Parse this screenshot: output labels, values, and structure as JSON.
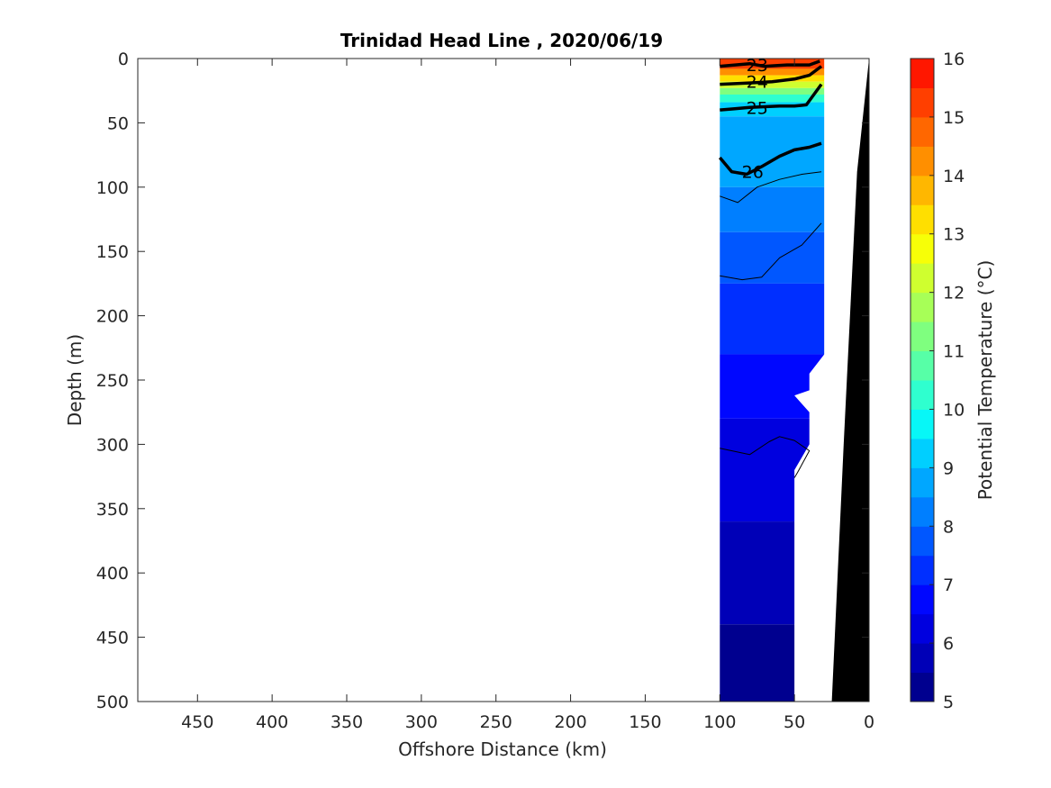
{
  "chart_data": {
    "type": "contour-section",
    "title": "Trinidad Head Line , 2020/06/19",
    "xlabel": "Offshore Distance (km)",
    "ylabel": "Depth (m)",
    "colorbar_label": "Potential Temperature (°C)",
    "x_axis": {
      "reversed": true,
      "range": [
        490,
        0
      ],
      "ticks": [
        450,
        400,
        350,
        300,
        250,
        200,
        150,
        100,
        50,
        0
      ]
    },
    "y_axis": {
      "reversed": true,
      "range": [
        0,
        500
      ],
      "ticks": [
        0,
        50,
        100,
        150,
        200,
        250,
        300,
        350,
        400,
        450,
        500
      ]
    },
    "colorbar": {
      "range": [
        5,
        16
      ],
      "ticks": [
        5,
        6,
        7,
        8,
        9,
        10,
        11,
        12,
        13,
        14,
        15,
        16
      ],
      "level_step": 0.5,
      "colors": [
        "#00008F",
        "#0000B7",
        "#0000DF",
        "#0007FF",
        "#002FFF",
        "#0057FF",
        "#007FFF",
        "#00A7FF",
        "#00CFFF",
        "#07F7F7",
        "#2FFFCF",
        "#57FFA7",
        "#7FFF7F",
        "#A7FF57",
        "#CFFF2F",
        "#F7FF07",
        "#FFDF00",
        "#FFB700",
        "#FF8F00",
        "#FF6700",
        "#FF3F00",
        "#FF1700",
        "#EF0000",
        "#C70000",
        "#9F0000",
        "#800000"
      ]
    },
    "station_extent_km": [
      100,
      30
    ],
    "temperature_bands": [
      {
        "from_depth": 0,
        "to_depth": 8,
        "temp": 15.2
      },
      {
        "from_depth": 8,
        "to_depth": 13,
        "temp": 14.2
      },
      {
        "from_depth": 13,
        "to_depth": 18,
        "temp": 13.3
      },
      {
        "from_depth": 18,
        "to_depth": 23,
        "temp": 12.3
      },
      {
        "from_depth": 23,
        "to_depth": 28,
        "temp": 11.3
      },
      {
        "from_depth": 28,
        "to_depth": 34,
        "temp": 10.3
      },
      {
        "from_depth": 34,
        "to_depth": 45,
        "temp": 9.3
      },
      {
        "from_depth": 45,
        "to_depth": 100,
        "temp": 8.8
      },
      {
        "from_depth": 100,
        "to_depth": 135,
        "temp": 8.3
      },
      {
        "from_depth": 135,
        "to_depth": 175,
        "temp": 7.8
      },
      {
        "from_depth": 175,
        "to_depth": 230,
        "temp": 7.3
      },
      {
        "from_depth": 230,
        "to_depth": 280,
        "temp": 6.8
      },
      {
        "from_depth": 280,
        "to_depth": 360,
        "temp": 6.3
      },
      {
        "from_depth": 360,
        "to_depth": 440,
        "temp": 5.8
      },
      {
        "from_depth": 440,
        "to_depth": 500,
        "temp": 5.3
      }
    ],
    "density_contours": [
      {
        "label": "23",
        "bold": true,
        "points": [
          [
            100,
            6
          ],
          [
            80,
            4
          ],
          [
            70,
            6
          ],
          [
            55,
            5
          ],
          [
            40,
            5
          ],
          [
            33,
            2
          ]
        ]
      },
      {
        "label": "24",
        "bold": true,
        "points": [
          [
            100,
            20
          ],
          [
            80,
            19
          ],
          [
            65,
            18
          ],
          [
            50,
            16
          ],
          [
            40,
            13
          ],
          [
            32,
            6
          ]
        ]
      },
      {
        "label": "25",
        "bold": true,
        "points": [
          [
            100,
            40
          ],
          [
            90,
            39
          ],
          [
            80,
            38
          ],
          [
            60,
            37
          ],
          [
            50,
            37
          ],
          [
            42,
            36
          ],
          [
            32,
            20
          ]
        ]
      },
      {
        "label": "26",
        "bold": true,
        "points": [
          [
            100,
            77
          ],
          [
            92,
            88
          ],
          [
            82,
            90
          ],
          [
            72,
            84
          ],
          [
            60,
            76
          ],
          [
            50,
            71
          ],
          [
            40,
            69
          ],
          [
            32,
            66
          ]
        ]
      },
      {
        "label": "",
        "bold": false,
        "points": [
          [
            100,
            107
          ],
          [
            88,
            112
          ],
          [
            75,
            100
          ],
          [
            60,
            94
          ],
          [
            45,
            90
          ],
          [
            32,
            88
          ]
        ]
      },
      {
        "label": "",
        "bold": false,
        "points": [
          [
            100,
            169
          ],
          [
            85,
            172
          ],
          [
            72,
            170
          ],
          [
            60,
            155
          ],
          [
            45,
            145
          ],
          [
            32,
            128
          ]
        ]
      },
      {
        "label": "",
        "bold": false,
        "points": [
          [
            100,
            303
          ],
          [
            80,
            308
          ],
          [
            67,
            298
          ],
          [
            60,
            294
          ],
          [
            50,
            297
          ],
          [
            40,
            305
          ],
          [
            48,
            322
          ],
          [
            50,
            326
          ]
        ]
      }
    ],
    "data_gap_polygon": [
      [
        36,
        0
      ],
      [
        30,
        0
      ],
      [
        30,
        230
      ],
      [
        40,
        245
      ],
      [
        40,
        258
      ],
      [
        50,
        262
      ],
      [
        40,
        275
      ],
      [
        40,
        300
      ],
      [
        50,
        320
      ],
      [
        50,
        500
      ],
      [
        25,
        500
      ],
      [
        17,
        300
      ],
      [
        8,
        100
      ],
      [
        0,
        0
      ]
    ],
    "bathymetry_polygon": [
      [
        0,
        0
      ],
      [
        8,
        88
      ],
      [
        17,
        300
      ],
      [
        25,
        500
      ],
      [
        0,
        500
      ]
    ],
    "contour_label_positions": {
      "23": [
        75,
        5
      ],
      "24": [
        75,
        18
      ],
      "25": [
        75,
        38
      ],
      "26": [
        78,
        88
      ]
    }
  }
}
